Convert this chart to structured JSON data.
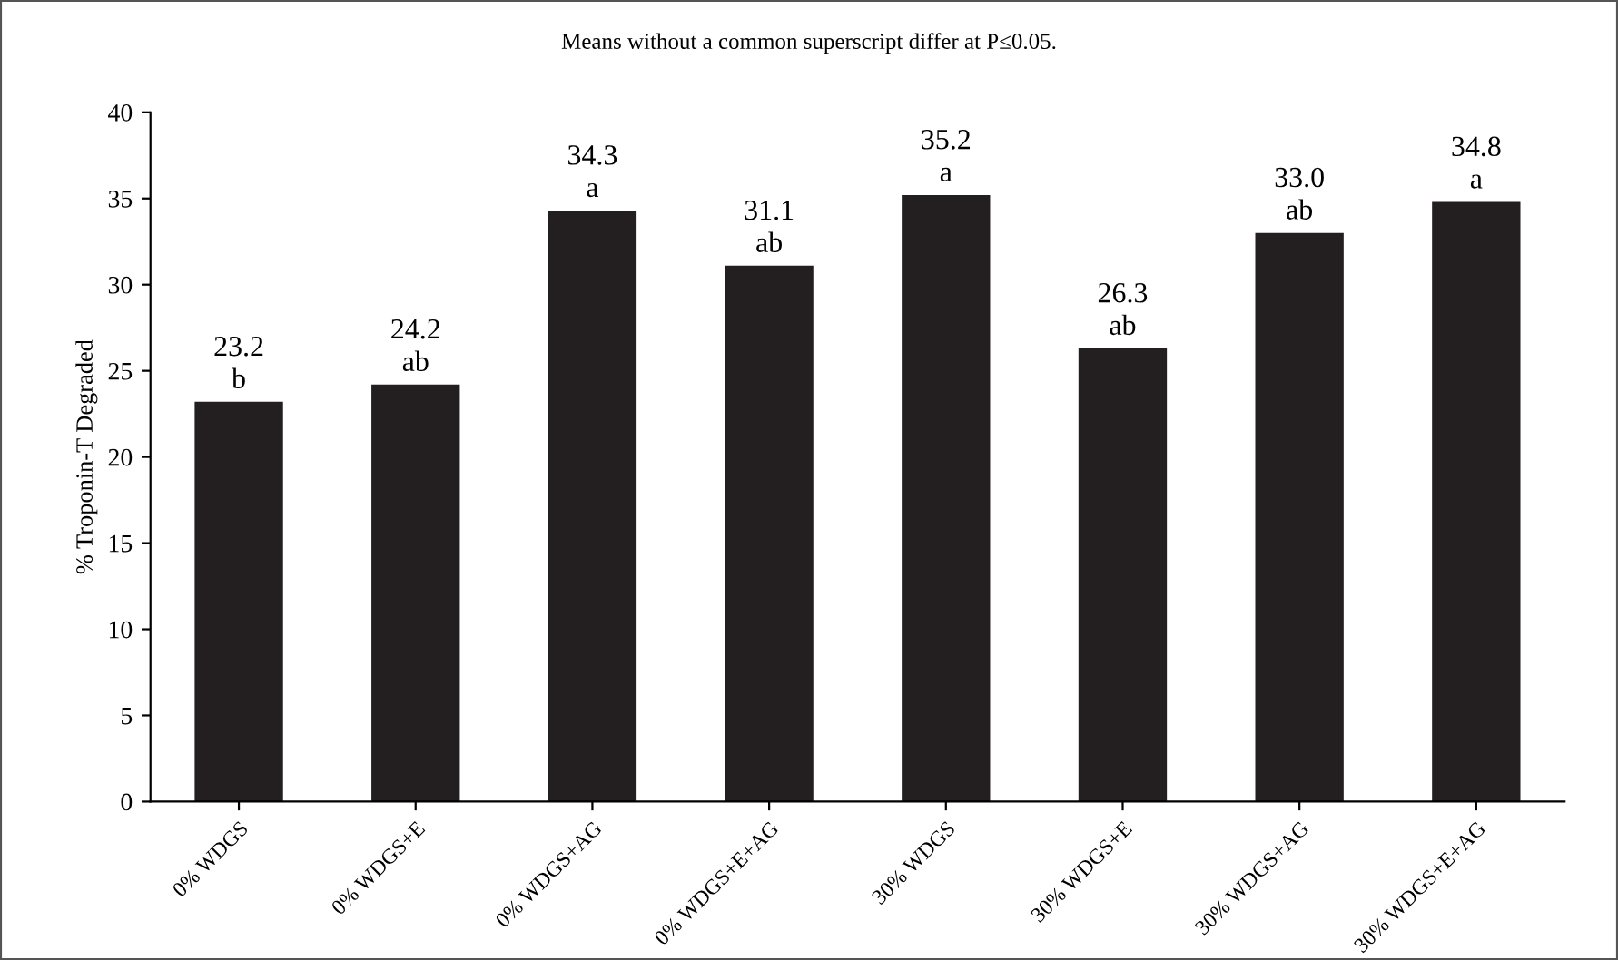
{
  "chart_data": {
    "type": "bar",
    "ylabel": "% Troponin-T Degraded",
    "annotations": [
      "Means without a common superscript differ at P≤0.05."
    ],
    "categories": [
      "0% WDGS",
      "0% WDGS+E",
      "0% WDGS+AG",
      "0% WDGS+E+AG",
      "30% WDGS",
      "30% WDGS+E",
      "30% WDGS+AG",
      "30% WDGS+E+AG"
    ],
    "values": [
      23.2,
      24.2,
      34.3,
      31.1,
      35.2,
      26.3,
      33.0,
      34.8
    ],
    "value_labels": [
      "23.2\nb",
      "24.2\nab",
      "34.3\na",
      "31.1\nab",
      "35.2\na",
      "26.3\nab",
      "33.0\nab",
      "34.8\na"
    ],
    "color": "#231f20",
    "ylim": [
      0,
      40
    ],
    "yticks": [
      0,
      5,
      10,
      15,
      20,
      25,
      30,
      35,
      40
    ],
    "grid": false,
    "legend": false
  }
}
